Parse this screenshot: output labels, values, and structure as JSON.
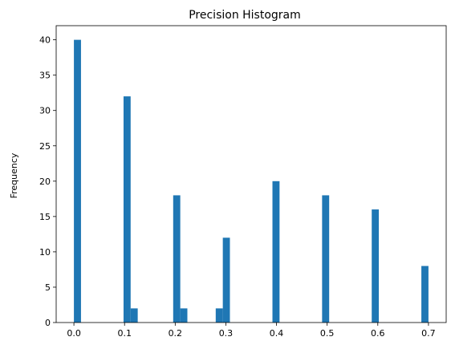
{
  "chart_data": {
    "type": "bar",
    "title": "Precision Histogram",
    "xlabel": "",
    "ylabel": "Frequency",
    "xlim": [
      -0.035,
      0.735
    ],
    "ylim": [
      0,
      42
    ],
    "bin_width": 0.014,
    "x_ticks": [
      0.0,
      0.1,
      0.2,
      0.3,
      0.4,
      0.5,
      0.6,
      0.7
    ],
    "x_tick_labels": [
      "0.0",
      "0.1",
      "0.2",
      "0.3",
      "0.4",
      "0.5",
      "0.6",
      "0.7"
    ],
    "y_ticks": [
      0,
      5,
      10,
      15,
      20,
      25,
      30,
      35,
      40
    ],
    "y_tick_labels": [
      "0",
      "5",
      "10",
      "15",
      "20",
      "25",
      "30",
      "35",
      "40"
    ],
    "bars": [
      {
        "x_start": 0.0,
        "value": 40
      },
      {
        "x_start": 0.098,
        "value": 32
      },
      {
        "x_start": 0.112,
        "value": 2
      },
      {
        "x_start": 0.196,
        "value": 18
      },
      {
        "x_start": 0.21,
        "value": 2
      },
      {
        "x_start": 0.28,
        "value": 2
      },
      {
        "x_start": 0.294,
        "value": 12
      },
      {
        "x_start": 0.392,
        "value": 20
      },
      {
        "x_start": 0.49,
        "value": 18
      },
      {
        "x_start": 0.588,
        "value": 16
      },
      {
        "x_start": 0.686,
        "value": 8
      }
    ],
    "bar_color": "#1f77b4",
    "grid": false,
    "legend": "none"
  }
}
